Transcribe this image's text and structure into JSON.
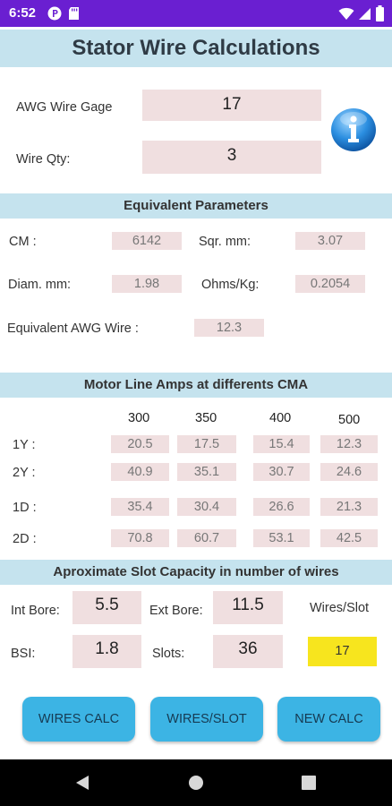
{
  "status_bar": {
    "time": "6:52"
  },
  "app": {
    "title": "Stator Wire Calculations"
  },
  "inputs": {
    "awg_label": "AWG Wire Gage",
    "awg_value": "17",
    "qty_label": "Wire Qty:",
    "qty_value": "3"
  },
  "equivalent": {
    "header": "Equivalent Parameters",
    "cm_label": "CM :",
    "cm_value": "6142",
    "sqr_label": "Sqr. mm:",
    "sqr_value": "3.07",
    "diam_label": "Diam. mm:",
    "diam_value": "1.98",
    "ohms_label": "Ohms/Kg:",
    "ohms_value": "0.2054",
    "awg_eq_label": "Equivalent AWG Wire :",
    "awg_eq_value": "12.3"
  },
  "motor": {
    "header": "Motor Line  Amps at differents CMA",
    "columns": [
      "300",
      "350",
      "400",
      "500"
    ],
    "rows": [
      {
        "label": "1Y :",
        "values": [
          "20.5",
          "17.5",
          "15.4",
          "12.3"
        ]
      },
      {
        "label": "2Y :",
        "values": [
          "40.9",
          "35.1",
          "30.7",
          "24.6"
        ]
      },
      {
        "label": "1D :",
        "values": [
          "35.4",
          "30.4",
          "26.6",
          "21.3"
        ]
      },
      {
        "label": "2D :",
        "values": [
          "70.8",
          "60.7",
          "53.1",
          "42.5"
        ]
      }
    ]
  },
  "slot": {
    "header": "Aproximate Slot Capacity in number of wires",
    "int_bore_label": "Int Bore:",
    "int_bore_value": "5.5",
    "ext_bore_label": "Ext Bore:",
    "ext_bore_value": "11.5",
    "wires_slot_label": "Wires/Slot",
    "bsi_label": "BSI:",
    "bsi_value": "1.8",
    "slots_label": "Slots:",
    "slots_value": "36",
    "wires_slot_value": "17"
  },
  "buttons": {
    "wires_calc": "WIRES CALC",
    "wires_slot": "WIRES/SLOT",
    "new_calc": "NEW CALC"
  },
  "colors": {
    "status_bar": "#6a1fd1",
    "band": "#c5e3ee",
    "field": "#f0dfe0",
    "highlight": "#f7e51e",
    "button": "#3cb4e4"
  },
  "icons": [
    "p-icon",
    "sd-card-icon",
    "wifi-icon",
    "cell-signal-icon",
    "battery-icon",
    "info-icon",
    "back-icon",
    "home-icon",
    "recents-icon"
  ]
}
